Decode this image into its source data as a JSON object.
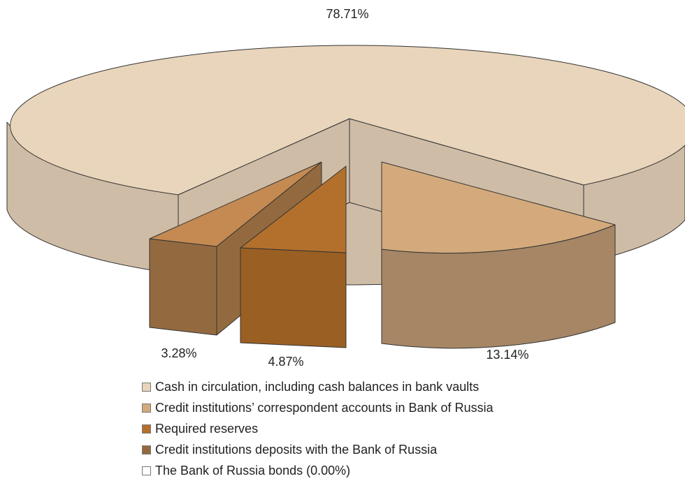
{
  "chart_data": {
    "type": "pie",
    "style": "3d-exploded",
    "slices": [
      {
        "label": "Cash in circulation, including cash balances in bank vaults",
        "value": 78.71,
        "value_label": "78.71%",
        "top_color": "#e9d5bb",
        "side_color": "#cfbca6"
      },
      {
        "label": "Credit institutions’ correspondent accounts in Bank of Russia",
        "value": 13.14,
        "value_label": "13.14%",
        "top_color": "#d4aa7c",
        "side_color": "#a68665"
      },
      {
        "label": "Required reserves",
        "value": 4.87,
        "value_label": "4.87%",
        "top_color": "#b3702c",
        "side_color": "#9a5f22"
      },
      {
        "label": "Credit institutions deposits with the Bank of Russia",
        "value": 3.28,
        "value_label": "3.28%",
        "top_color": "#c48a52",
        "side_color": "#936a3f"
      },
      {
        "label": "The Bank of Russia  bonds (0.00%)",
        "value": 0.0,
        "value_label": "",
        "top_color": "#ffffff",
        "side_color": "#ffffff"
      }
    ],
    "legend_position": "bottom"
  }
}
